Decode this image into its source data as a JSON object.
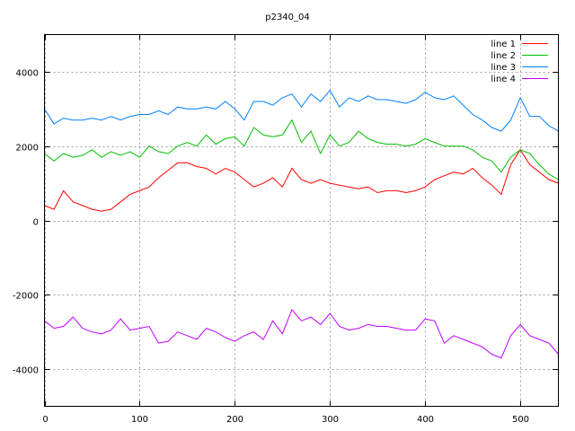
{
  "chart_data": {
    "type": "line",
    "title": "p2340_04",
    "xlabel": "",
    "ylabel": "",
    "xlim": [
      0,
      540
    ],
    "ylim": [
      -5000,
      5000
    ],
    "xticks": [
      0,
      100,
      200,
      300,
      400,
      500
    ],
    "yticks": [
      -4000,
      -2000,
      0,
      2000,
      4000
    ],
    "grid": true,
    "legend_position": "top-right",
    "x": [
      0,
      10,
      20,
      30,
      40,
      50,
      60,
      70,
      80,
      90,
      100,
      110,
      120,
      130,
      140,
      150,
      160,
      170,
      180,
      190,
      200,
      210,
      220,
      230,
      240,
      250,
      260,
      270,
      280,
      290,
      300,
      310,
      320,
      330,
      340,
      350,
      360,
      370,
      380,
      390,
      400,
      410,
      420,
      430,
      440,
      450,
      460,
      470,
      480,
      490,
      500,
      510,
      520,
      530,
      540
    ],
    "series": [
      {
        "name": "line 1",
        "color": "#ff0000",
        "values": [
          400,
          300,
          800,
          500,
          400,
          300,
          250,
          300,
          500,
          700,
          800,
          900,
          1150,
          1350,
          1550,
          1550,
          1450,
          1400,
          1250,
          1400,
          1300,
          1100,
          900,
          1000,
          1150,
          900,
          1400,
          1100,
          1000,
          1100,
          1000,
          950,
          900,
          850,
          900,
          750,
          800,
          800,
          750,
          800,
          900,
          1100,
          1200,
          1300,
          1250,
          1400,
          1150,
          950,
          700,
          1500,
          1900,
          1500,
          1300,
          1100,
          1000
        ]
      },
      {
        "name": "line 2",
        "color": "#00c000",
        "values": [
          1800,
          1600,
          1800,
          1700,
          1750,
          1900,
          1700,
          1850,
          1750,
          1850,
          1700,
          2000,
          1850,
          1800,
          2000,
          2100,
          2000,
          2300,
          2050,
          2200,
          2250,
          2000,
          2500,
          2300,
          2250,
          2300,
          2700,
          2100,
          2400,
          1800,
          2300,
          2000,
          2100,
          2400,
          2200,
          2100,
          2050,
          2050,
          2000,
          2050,
          2200,
          2100,
          2000,
          2000,
          2000,
          1900,
          1700,
          1600,
          1300,
          1700,
          1900,
          1800,
          1500,
          1250,
          1100
        ]
      },
      {
        "name": "line 3",
        "color": "#0080ff",
        "values": [
          3000,
          2600,
          2750,
          2700,
          2700,
          2750,
          2700,
          2800,
          2700,
          2800,
          2850,
          2850,
          2950,
          2850,
          3050,
          3000,
          3000,
          3050,
          3000,
          3200,
          3000,
          2700,
          3200,
          3200,
          3100,
          3300,
          3400,
          3050,
          3400,
          3200,
          3500,
          3050,
          3300,
          3200,
          3350,
          3250,
          3250,
          3200,
          3150,
          3250,
          3450,
          3300,
          3250,
          3350,
          3100,
          2850,
          2700,
          2500,
          2400,
          2700,
          3300,
          2800,
          2800,
          2550,
          2400
        ]
      },
      {
        "name": "line 4",
        "color": "#c000ff",
        "values": [
          -2700,
          -2900,
          -2850,
          -2600,
          -2900,
          -3000,
          -3050,
          -2950,
          -2650,
          -2950,
          -2900,
          -2850,
          -3300,
          -3250,
          -3000,
          -3100,
          -3200,
          -2900,
          -3000,
          -3150,
          -3250,
          -3100,
          -3000,
          -3200,
          -2700,
          -3050,
          -2400,
          -2700,
          -2600,
          -2800,
          -2500,
          -2850,
          -2950,
          -2900,
          -2800,
          -2850,
          -2850,
          -2900,
          -2950,
          -2950,
          -2650,
          -2700,
          -3300,
          -3100,
          -3200,
          -3300,
          -3400,
          -3600,
          -3700,
          -3100,
          -2800,
          -3100,
          -3200,
          -3300,
          -3600
        ]
      }
    ]
  }
}
